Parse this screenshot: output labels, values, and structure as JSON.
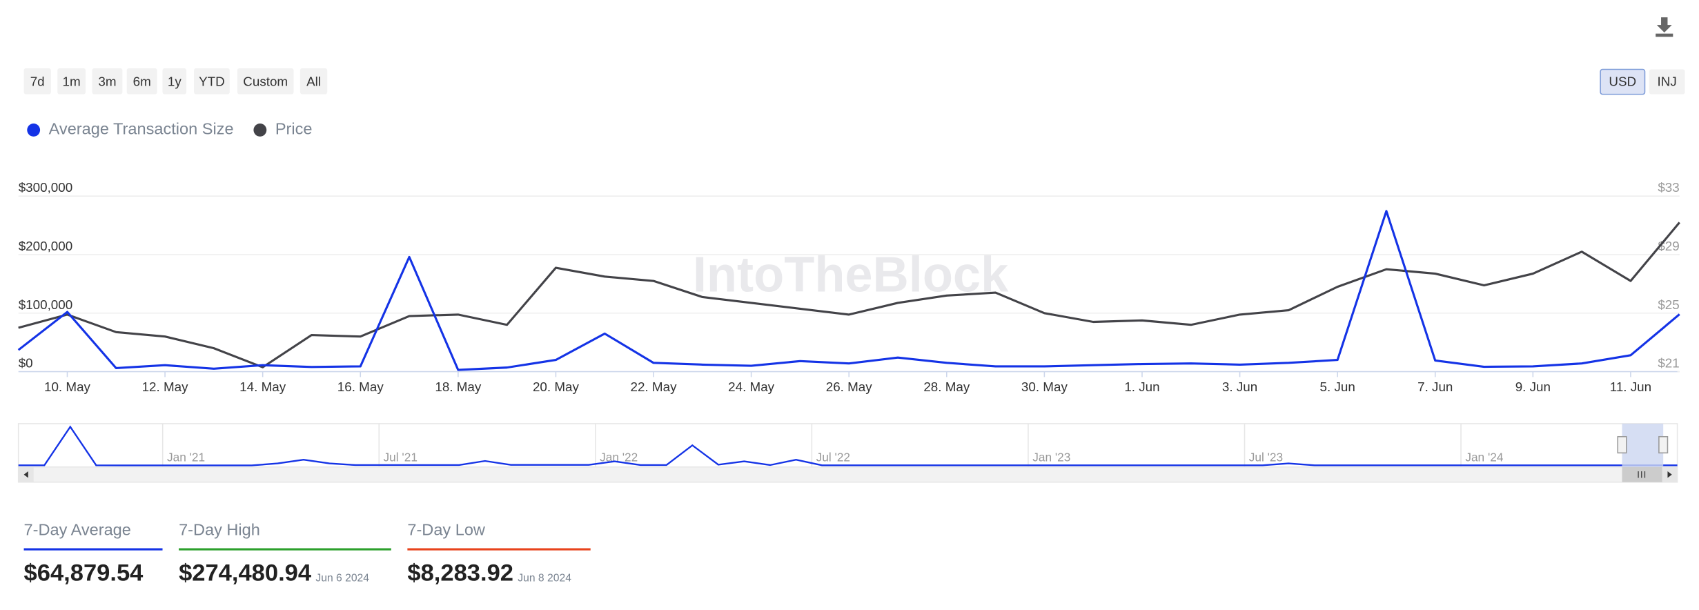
{
  "toolbar": {
    "ranges": [
      "7d",
      "1m",
      "3m",
      "6m",
      "1y",
      "YTD",
      "Custom",
      "All"
    ],
    "currencies": [
      "USD",
      "INJ"
    ],
    "active_currency": "USD"
  },
  "chart_data": {
    "type": "line",
    "watermark": "IntoTheBlock",
    "categories": [
      null,
      "10. May",
      null,
      "12. May",
      null,
      "14. May",
      null,
      "16. May",
      null,
      "18. May",
      null,
      "20. May",
      null,
      "22. May",
      null,
      "24. May",
      null,
      "26. May",
      null,
      "28. May",
      null,
      "30. May",
      null,
      "1. Jun",
      null,
      "3. Jun",
      null,
      "5. Jun",
      null,
      "7. Jun",
      null,
      "9. Jun",
      null,
      "11. Jun",
      null
    ],
    "series": [
      {
        "name": "Average Transaction Size",
        "color": "#1433e6",
        "axis": "y",
        "values": [
          37000,
          102000,
          6000,
          11000,
          5000,
          11000,
          8000,
          9000,
          196000,
          3000,
          7000,
          20000,
          65000,
          15000,
          12000,
          10000,
          18000,
          14000,
          24000,
          15000,
          9000,
          9000,
          11000,
          13000,
          14000,
          12000,
          15000,
          20000,
          274480.94,
          19000,
          8283.92,
          9000,
          14000,
          28000,
          98000
        ]
      },
      {
        "name": "Price",
        "color": "#434348",
        "axis": "y2",
        "values": [
          24.0,
          24.9,
          23.7,
          23.4,
          22.6,
          21.3,
          23.5,
          23.4,
          24.8,
          24.9,
          24.2,
          28.1,
          27.5,
          27.2,
          26.1,
          25.7,
          25.3,
          24.9,
          25.7,
          26.2,
          26.4,
          25.0,
          24.4,
          24.5,
          24.2,
          24.9,
          25.2,
          26.8,
          28.0,
          27.7,
          26.9,
          27.7,
          29.2,
          27.2,
          31.2
        ]
      }
    ],
    "ylim": [
      0,
      300000
    ],
    "yticks": [
      {
        "value": 0,
        "label": "$0"
      },
      {
        "value": 100000,
        "label": "$100,000"
      },
      {
        "value": 200000,
        "label": "$200,000"
      },
      {
        "value": 300000,
        "label": "$300,000"
      }
    ],
    "y2lim": [
      21,
      33
    ],
    "y2ticks": [
      {
        "value": 21,
        "label": "$21"
      },
      {
        "value": 25,
        "label": "$25"
      },
      {
        "value": 29,
        "label": "$29"
      },
      {
        "value": 33,
        "label": "$33"
      }
    ],
    "grid": true,
    "navigator": {
      "xlim": [
        "2020-09",
        "2024-07"
      ],
      "ylim": [
        0,
        1000000
      ],
      "color": "#1433e6",
      "xticks": [
        {
          "value": "2021-01",
          "label": "Jan '21"
        },
        {
          "value": "2021-07",
          "label": "Jul '21"
        },
        {
          "value": "2022-01",
          "label": "Jan '22"
        },
        {
          "value": "2022-07",
          "label": "Jul '22"
        },
        {
          "value": "2023-01",
          "label": "Jan '23"
        },
        {
          "value": "2023-07",
          "label": "Jul '23"
        },
        {
          "value": "2024-01",
          "label": "Jan '24"
        }
      ],
      "values": [
        15000,
        15000,
        950000,
        15000,
        12000,
        12000,
        12000,
        12000,
        12000,
        12000,
        60000,
        150000,
        60000,
        20000,
        20000,
        20000,
        20000,
        20000,
        120000,
        25000,
        25000,
        25000,
        25000,
        110000,
        20000,
        20000,
        500000,
        30000,
        110000,
        20000,
        150000,
        15000,
        15000,
        15000,
        15000,
        15000,
        15000,
        15000,
        15000,
        15000,
        15000,
        15000,
        15000,
        15000,
        15000,
        15000,
        15000,
        15000,
        15000,
        60000,
        15000,
        15000,
        15000,
        15000,
        15000,
        15000,
        15000,
        15000,
        15000,
        15000,
        15000,
        15000,
        15000,
        15000,
        15000
      ]
    }
  },
  "stats": [
    {
      "label": "7-Day Average",
      "value": "$64,879.54",
      "color": "#1433e6"
    },
    {
      "label": "7-Day High",
      "value": "$274,480.94",
      "date": "Jun 6 2024",
      "color": "#2ca02c"
    },
    {
      "label": "7-Day Low",
      "value": "$8,283.92",
      "date": "Jun 8 2024",
      "color": "#e8431c"
    }
  ]
}
